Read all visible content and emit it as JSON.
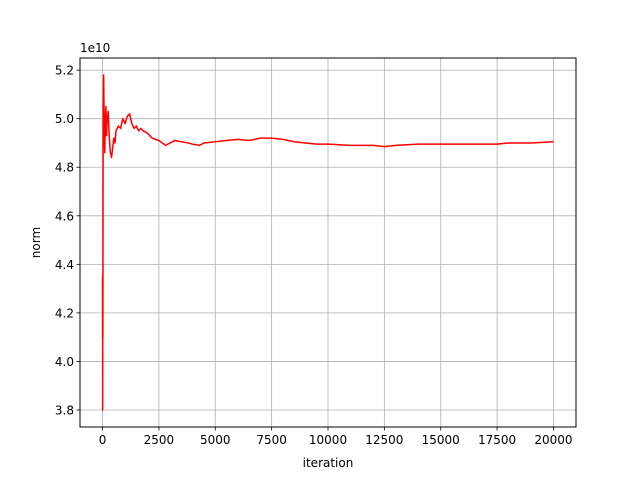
{
  "chart_data": {
    "type": "line",
    "title": "",
    "xlabel": "iteration",
    "ylabel": "norm",
    "y_offset_text": "1e10",
    "xlim": [
      -1000,
      21000
    ],
    "ylim": [
      3.73,
      5.25
    ],
    "x_ticks": [
      0,
      2500,
      5000,
      7500,
      10000,
      12500,
      15000,
      17500,
      20000
    ],
    "x_tick_labels": [
      "0",
      "2500",
      "5000",
      "7500",
      "10000",
      "12500",
      "15000",
      "17500",
      "20000"
    ],
    "y_ticks": [
      3.8,
      4.0,
      4.2,
      4.4,
      4.6,
      4.8,
      5.0,
      5.2
    ],
    "y_tick_labels": [
      "3.8",
      "4.0",
      "4.2",
      "4.4",
      "4.6",
      "4.8",
      "5.0",
      "5.2"
    ],
    "grid": true,
    "legend": "none",
    "series": [
      {
        "color": "#ff0000",
        "x": [
          0,
          5,
          10,
          15,
          20,
          25,
          30,
          40,
          50,
          60,
          70,
          80,
          100,
          120,
          150,
          180,
          200,
          250,
          300,
          350,
          400,
          450,
          500,
          550,
          600,
          700,
          800,
          900,
          1000,
          1100,
          1200,
          1300,
          1400,
          1500,
          1600,
          1700,
          1800,
          2000,
          2200,
          2500,
          2800,
          3000,
          3200,
          3500,
          3800,
          4000,
          4300,
          4500,
          5000,
          5500,
          6000,
          6500,
          7000,
          7500,
          8000,
          8500,
          9000,
          9500,
          10000,
          11000,
          12000,
          12500,
          13000,
          14000,
          15000,
          16000,
          17000,
          17500,
          18000,
          19000,
          20000
        ],
        "y": [
          4.35,
          3.8,
          4.3,
          4.1,
          4.6,
          4.9,
          5.05,
          5.16,
          5.18,
          5.08,
          5.02,
          4.95,
          4.86,
          4.98,
          5.05,
          4.93,
          4.99,
          5.03,
          4.92,
          4.86,
          4.84,
          4.88,
          4.92,
          4.9,
          4.95,
          4.97,
          4.96,
          5.0,
          4.98,
          5.01,
          5.02,
          4.98,
          4.96,
          4.97,
          4.95,
          4.96,
          4.95,
          4.94,
          4.92,
          4.91,
          4.89,
          4.9,
          4.91,
          4.905,
          4.9,
          4.895,
          4.89,
          4.9,
          4.905,
          4.91,
          4.915,
          4.91,
          4.92,
          4.92,
          4.915,
          4.905,
          4.9,
          4.895,
          4.895,
          4.89,
          4.89,
          4.885,
          4.89,
          4.895,
          4.895,
          4.895,
          4.895,
          4.895,
          4.9,
          4.9,
          4.905
        ]
      }
    ]
  }
}
